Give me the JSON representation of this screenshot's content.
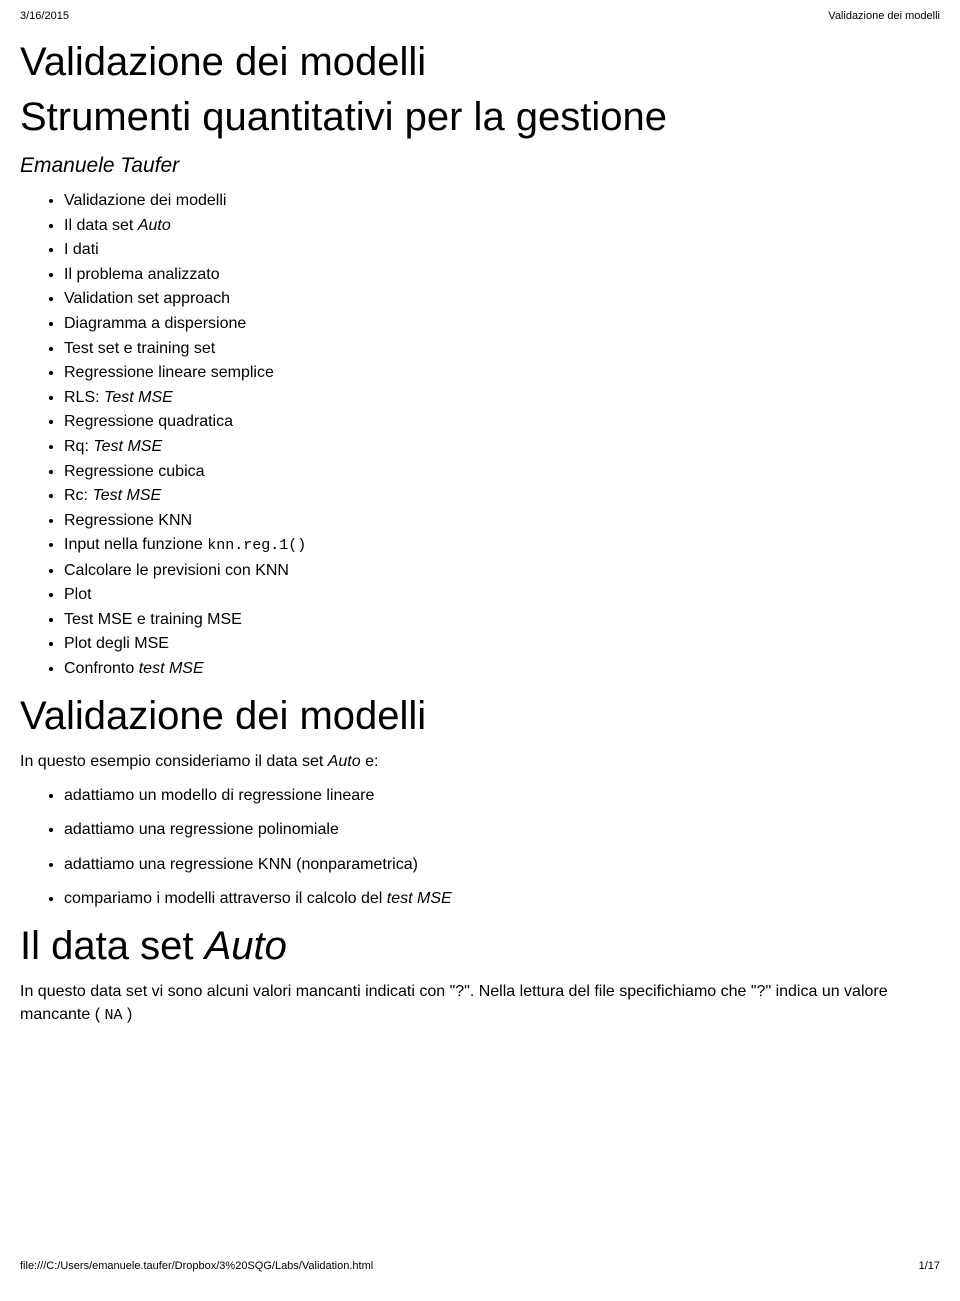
{
  "header": {
    "date": "3/16/2015",
    "title": "Validazione dei modelli"
  },
  "title_main": "Validazione dei modelli",
  "subtitle_main": "Strumenti quantitativi per la gestione",
  "author": "Emanuele Taufer",
  "toc": [
    {
      "text": "Validazione dei modelli"
    },
    {
      "prefix": "Il data set ",
      "italic": "Auto"
    },
    {
      "text": "I dati"
    },
    {
      "text": "Il problema analizzato"
    },
    {
      "text": "Validation set approach"
    },
    {
      "text": "Diagramma a dispersione"
    },
    {
      "text": "Test set e training set"
    },
    {
      "text": "Regressione lineare semplice"
    },
    {
      "prefix": "RLS: ",
      "italic": "Test MSE"
    },
    {
      "text": "Regressione quadratica"
    },
    {
      "prefix": "Rq: ",
      "italic": "Test MSE"
    },
    {
      "text": "Regressione cubica"
    },
    {
      "prefix": "Rc: ",
      "italic": "Test MSE"
    },
    {
      "text": "Regressione KNN"
    },
    {
      "prefix": "Input nella funzione ",
      "code": "knn.reg.1()"
    },
    {
      "text": "Calcolare le previsioni con KNN"
    },
    {
      "text": "Plot"
    },
    {
      "text": "Test MSE e training MSE"
    },
    {
      "text": "Plot degli MSE"
    },
    {
      "prefix": "Confronto ",
      "italic": "test MSE"
    }
  ],
  "section1": {
    "heading": "Validazione dei modelli",
    "intro_prefix": "In questo esempio consideriamo il data set ",
    "intro_italic": "Auto",
    "intro_suffix": " e:",
    "items": [
      {
        "text": "adattiamo un modello di regressione lineare"
      },
      {
        "text": "adattiamo una regressione polinomiale"
      },
      {
        "text": "adattiamo una regressione KNN (nonparametrica)"
      },
      {
        "prefix": "compariamo i modelli attraverso il calcolo del ",
        "italic": "test MSE"
      }
    ]
  },
  "section2": {
    "heading_prefix": "Il data set ",
    "heading_italic": "Auto",
    "p_prefix": "In questo data set vi sono alcuni valori mancanti indicati con \"?\". Nella lettura del file specifichiamo che \"?\" indica un valore mancante ( ",
    "p_code": "NA",
    "p_suffix": " )"
  },
  "footer": {
    "path": "file:///C:/Users/emanuele.taufer/Dropbox/3%20SQG/Labs/Validation.html",
    "page": "1/17"
  }
}
